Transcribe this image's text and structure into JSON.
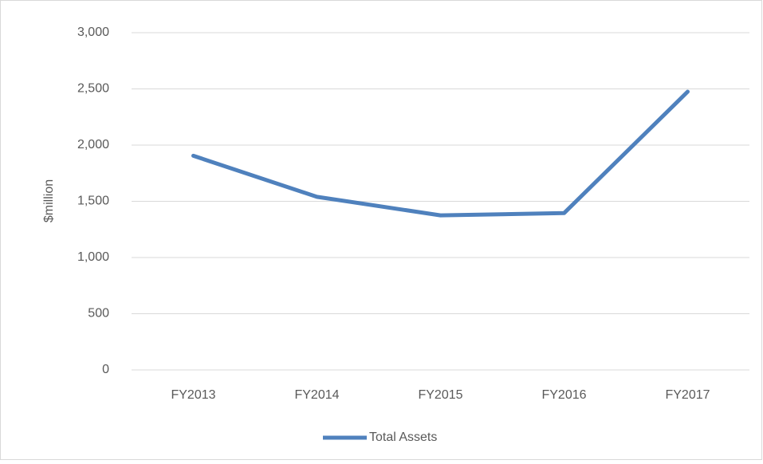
{
  "chart_data": {
    "type": "line",
    "ylabel": "$million",
    "categories": [
      "FY2013",
      "FY2014",
      "FY2015",
      "FY2016",
      "FY2017"
    ],
    "series": [
      {
        "name": "Total Assets",
        "color": "#4f81bd",
        "values": [
          1905,
          1540,
          1375,
          1395,
          2475
        ]
      }
    ],
    "ylim": [
      0,
      3000
    ],
    "yticks": [
      0,
      500,
      {
        "value": 1000,
        "label": "1,000"
      },
      {
        "value": 1500,
        "label": "1,500"
      },
      {
        "value": 2000,
        "label": "2,000"
      },
      {
        "value": 2500,
        "label": "2,500"
      },
      {
        "value": 3000,
        "label": "3,000"
      }
    ],
    "grid": true,
    "legend": "bottom"
  }
}
